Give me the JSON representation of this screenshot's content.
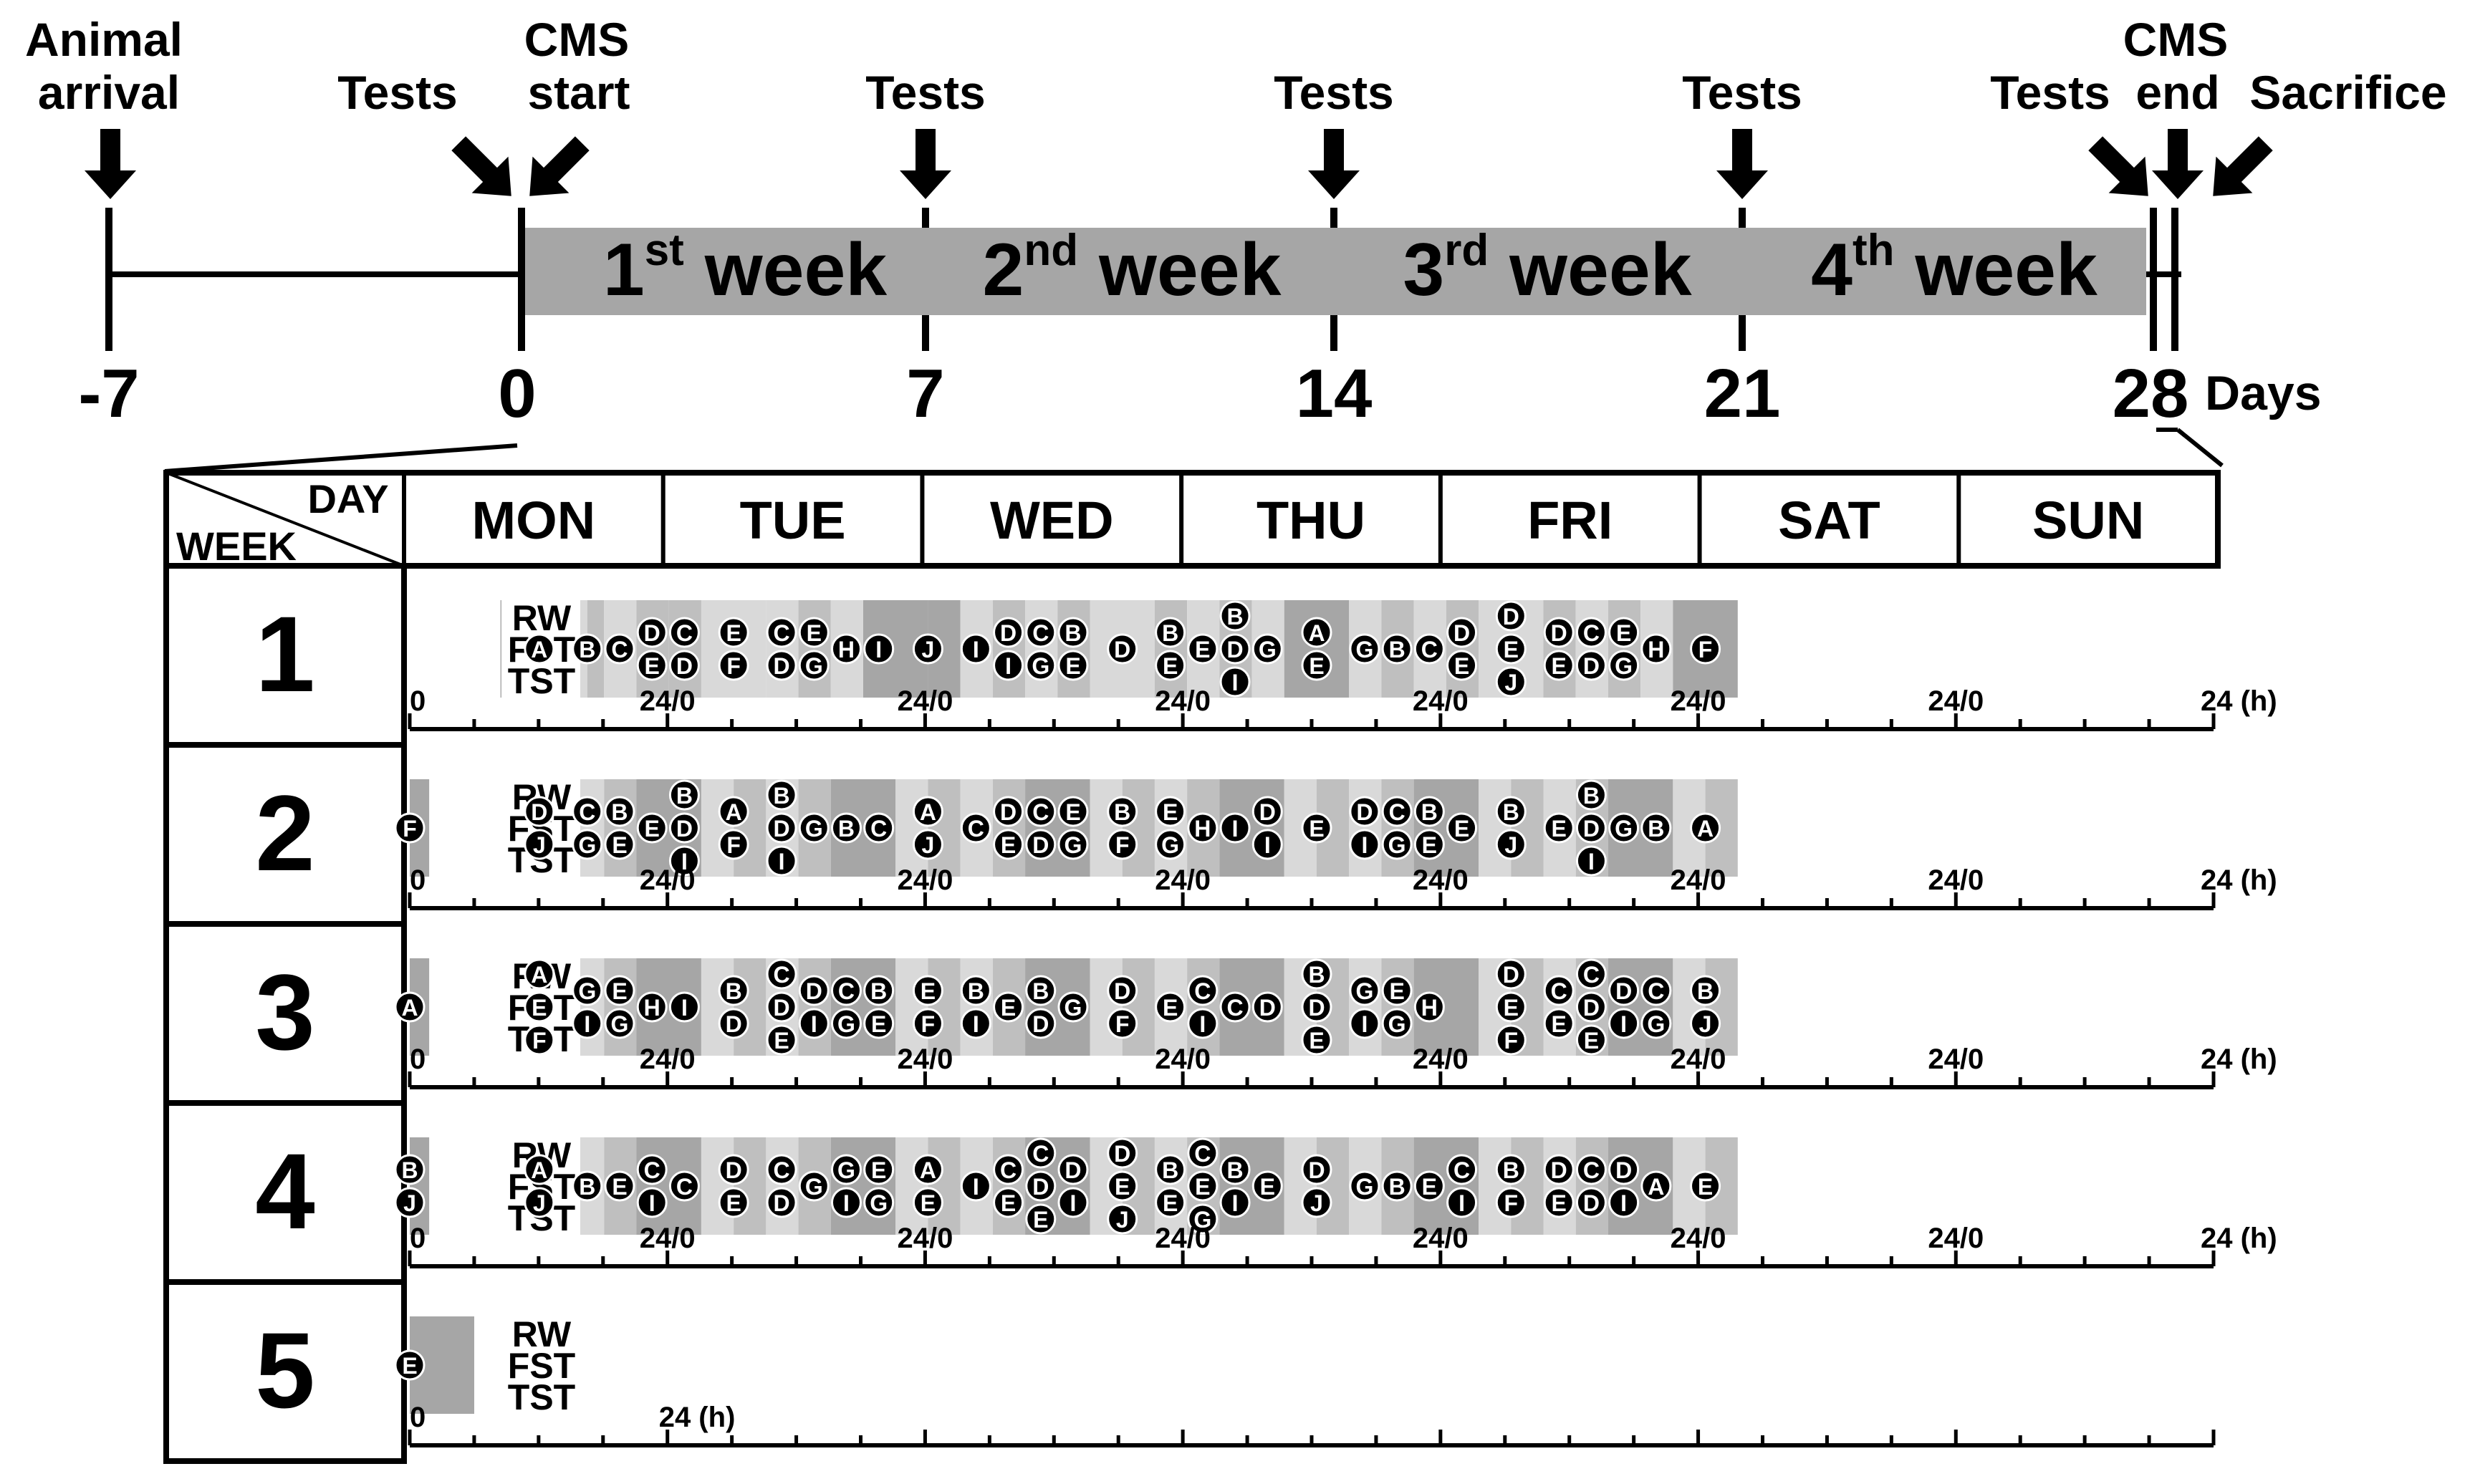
{
  "timeline": {
    "left_labels": {
      "animal_arrival": [
        "Animal",
        "arrival"
      ],
      "tests": "Tests",
      "cms_start": [
        "CMS",
        "start"
      ]
    },
    "tests_label": "Tests",
    "right_labels": {
      "tests": "Tests",
      "cms_end": [
        "CMS",
        "end"
      ],
      "sacrifice": "Sacrifice"
    },
    "weeks": [
      {
        "num": "1",
        "sup": "st",
        "word": " week"
      },
      {
        "num": "2",
        "sup": "nd",
        "word": " week"
      },
      {
        "num": "3",
        "sup": "rd",
        "word": " week"
      },
      {
        "num": "4",
        "sup": "th",
        "word": " week"
      }
    ],
    "ticks": [
      "-7",
      "0",
      "7",
      "14",
      "21",
      "28"
    ],
    "unit": "Days"
  },
  "schedule": {
    "corner_day": "DAY",
    "corner_week": "WEEK",
    "days": [
      "MON",
      "TUE",
      "WED",
      "THU",
      "FRI",
      "SAT",
      "SUN"
    ],
    "tests": [
      "RW",
      "FST",
      "TST"
    ],
    "axis_start": "0",
    "axis_mid": "24/0",
    "axis_end": "24 (h)",
    "week5_end": "24 (h)",
    "weeks": [
      {
        "label": "1",
        "blocks": [
          [
            0,
            0
          ],
          [
            0.7,
            "d"
          ],
          [
            1.2,
            "m"
          ],
          [
            1.5,
            "d"
          ],
          [
            1.75,
            "m"
          ],
          [
            2.0,
            "l"
          ],
          [
            2.25,
            "m"
          ],
          [
            2.5,
            "d"
          ],
          [
            2.75,
            "l"
          ],
          [
            3.0,
            "d"
          ],
          [
            3.5,
            "l"
          ],
          [
            3.75,
            "m"
          ],
          [
            4.0,
            "d"
          ],
          [
            4.25,
            "l"
          ],
          [
            4.75,
            "m"
          ],
          [
            5.0,
            "d"
          ],
          [
            5.5,
            "l"
          ],
          [
            5.75,
            "m"
          ],
          [
            6.0,
            "l"
          ],
          [
            6.25,
            "m"
          ],
          [
            6.5,
            "l"
          ],
          [
            6.75,
            "m"
          ],
          [
            7.0,
            "l"
          ],
          [
            7.25,
            "m"
          ],
          [
            7.5,
            "l"
          ],
          [
            7.75,
            "m"
          ],
          [
            8.0,
            "end"
          ]
        ],
        "events": [
          {
            "t": 1.0,
            "c": [
              "A"
            ]
          },
          {
            "t": 1.37,
            "c": [
              "B"
            ]
          },
          {
            "t": 1.62,
            "c": [
              "C"
            ]
          },
          {
            "t": 1.87,
            "c": [
              "D",
              "E"
            ]
          },
          {
            "t": 2.12,
            "c": [
              "C",
              "D"
            ]
          },
          {
            "t": 2.5,
            "c": [
              "E",
              "F"
            ]
          },
          {
            "t": 2.87,
            "c": [
              "C",
              "D"
            ]
          },
          {
            "t": 3.12,
            "c": [
              "E",
              "G"
            ]
          },
          {
            "t": 3.37,
            "c": [
              "H"
            ]
          },
          {
            "t": 3.62,
            "c": [
              "I"
            ]
          },
          {
            "t": 4.0,
            "c": [
              "J"
            ]
          },
          {
            "t": 4.37,
            "c": [
              "I"
            ]
          },
          {
            "t": 4.62,
            "c": [
              "D",
              "I"
            ]
          },
          {
            "t": 4.87,
            "c": [
              "C",
              "G"
            ]
          },
          {
            "t": 5.12,
            "c": [
              "B",
              "E"
            ]
          },
          {
            "t": 5.5,
            "c": [
              "D"
            ]
          },
          {
            "t": 5.87,
            "c": [
              "B",
              "E"
            ]
          },
          {
            "t": 6.12,
            "c": [
              "E"
            ]
          },
          {
            "t": 6.37,
            "c": [
              "B",
              "D",
              "I"
            ]
          },
          {
            "t": 6.62,
            "c": [
              "G"
            ]
          },
          {
            "t": 7.0,
            "c": [
              "A",
              "E"
            ]
          },
          {
            "t": 7.37,
            "c": [
              "G"
            ]
          },
          {
            "t": 7.62,
            "c": [
              "B"
            ]
          },
          {
            "t": 7.87,
            "c": [
              "C"
            ]
          },
          {
            "t": 8.12,
            "c": [
              "D",
              "E"
            ]
          },
          {
            "t": 8.5,
            "c": [
              "D",
              "E",
              "J"
            ]
          },
          {
            "t": 8.87,
            "c": [
              "D",
              "E"
            ]
          },
          {
            "t": 9.12,
            "c": [
              "C",
              "D"
            ]
          },
          {
            "t": 9.37,
            "c": [
              "E",
              "G"
            ]
          },
          {
            "t": 9.62,
            "c": [
              "H"
            ]
          },
          {
            "t": 10.0,
            "c": [
              "F"
            ]
          }
        ]
      },
      {
        "label": "2",
        "blocks": [],
        "events": [
          {
            "t": 0.0,
            "c": [
              "F"
            ]
          },
          {
            "t": 1.0,
            "c": [
              "D",
              "J"
            ]
          },
          {
            "t": 1.37,
            "c": [
              "C",
              "G"
            ]
          },
          {
            "t": 1.62,
            "c": [
              "B",
              "E"
            ]
          },
          {
            "t": 1.87,
            "c": [
              "E"
            ]
          },
          {
            "t": 2.12,
            "c": [
              "B",
              "D",
              "I"
            ]
          },
          {
            "t": 2.5,
            "c": [
              "A",
              "F"
            ]
          },
          {
            "t": 2.87,
            "c": [
              "B",
              "D",
              "I"
            ]
          },
          {
            "t": 3.12,
            "c": [
              "G"
            ]
          },
          {
            "t": 3.37,
            "c": [
              "B"
            ]
          },
          {
            "t": 3.62,
            "c": [
              "C"
            ]
          },
          {
            "t": 4.0,
            "c": [
              "A",
              "J"
            ]
          },
          {
            "t": 4.37,
            "c": [
              "C"
            ]
          },
          {
            "t": 4.62,
            "c": [
              "D",
              "E"
            ]
          },
          {
            "t": 4.87,
            "c": [
              "C",
              "D"
            ]
          },
          {
            "t": 5.12,
            "c": [
              "E",
              "G"
            ]
          },
          {
            "t": 5.5,
            "c": [
              "B",
              "F"
            ]
          },
          {
            "t": 5.87,
            "c": [
              "E",
              "G"
            ]
          },
          {
            "t": 6.12,
            "c": [
              "H"
            ]
          },
          {
            "t": 6.37,
            "c": [
              "I"
            ]
          },
          {
            "t": 6.62,
            "c": [
              "D",
              "I"
            ]
          },
          {
            "t": 7.0,
            "c": [
              "E"
            ]
          },
          {
            "t": 7.37,
            "c": [
              "D",
              "I"
            ]
          },
          {
            "t": 7.62,
            "c": [
              "C",
              "G"
            ]
          },
          {
            "t": 7.87,
            "c": [
              "B",
              "E"
            ]
          },
          {
            "t": 8.12,
            "c": [
              "E"
            ]
          },
          {
            "t": 8.5,
            "c": [
              "B",
              "J"
            ]
          },
          {
            "t": 8.87,
            "c": [
              "E"
            ]
          },
          {
            "t": 9.12,
            "c": [
              "B",
              "D",
              "I"
            ]
          },
          {
            "t": 9.37,
            "c": [
              "G"
            ]
          },
          {
            "t": 9.62,
            "c": [
              "B"
            ]
          },
          {
            "t": 10.0,
            "c": [
              "A"
            ]
          }
        ]
      },
      {
        "label": "3",
        "blocks": [],
        "events": [
          {
            "t": 0.0,
            "c": [
              "A"
            ]
          },
          {
            "t": 1.0,
            "c": [
              "A",
              "E",
              "F"
            ]
          },
          {
            "t": 1.37,
            "c": [
              "G",
              "I"
            ]
          },
          {
            "t": 1.62,
            "c": [
              "E",
              "G"
            ]
          },
          {
            "t": 1.87,
            "c": [
              "H"
            ]
          },
          {
            "t": 2.12,
            "c": [
              "I"
            ]
          },
          {
            "t": 2.5,
            "c": [
              "B",
              "D"
            ]
          },
          {
            "t": 2.87,
            "c": [
              "C",
              "D",
              "E"
            ]
          },
          {
            "t": 3.12,
            "c": [
              "D",
              "I"
            ]
          },
          {
            "t": 3.37,
            "c": [
              "C",
              "G"
            ]
          },
          {
            "t": 3.62,
            "c": [
              "B",
              "E"
            ]
          },
          {
            "t": 4.0,
            "c": [
              "E",
              "F"
            ]
          },
          {
            "t": 4.37,
            "c": [
              "B",
              "I"
            ]
          },
          {
            "t": 4.62,
            "c": [
              "E"
            ]
          },
          {
            "t": 4.87,
            "c": [
              "B",
              "D"
            ]
          },
          {
            "t": 5.12,
            "c": [
              "G"
            ]
          },
          {
            "t": 5.5,
            "c": [
              "D",
              "F"
            ]
          },
          {
            "t": 5.87,
            "c": [
              "E"
            ]
          },
          {
            "t": 6.12,
            "c": [
              "C",
              "I"
            ]
          },
          {
            "t": 6.37,
            "c": [
              "C"
            ]
          },
          {
            "t": 6.62,
            "c": [
              "D"
            ]
          },
          {
            "t": 7.0,
            "c": [
              "B",
              "D",
              "E"
            ]
          },
          {
            "t": 7.37,
            "c": [
              "G",
              "I"
            ]
          },
          {
            "t": 7.62,
            "c": [
              "E",
              "G"
            ]
          },
          {
            "t": 7.87,
            "c": [
              "H"
            ]
          },
          {
            "t": 8.5,
            "c": [
              "D",
              "E",
              "F"
            ]
          },
          {
            "t": 8.87,
            "c": [
              "C",
              "E"
            ]
          },
          {
            "t": 9.12,
            "c": [
              "C",
              "D",
              "E"
            ]
          },
          {
            "t": 9.37,
            "c": [
              "D",
              "I"
            ]
          },
          {
            "t": 9.62,
            "c": [
              "C",
              "G"
            ]
          },
          {
            "t": 10.0,
            "c": [
              "B",
              "J"
            ]
          }
        ]
      },
      {
        "label": "4",
        "blocks": [],
        "events": [
          {
            "t": 0.0,
            "c": [
              "B",
              "J"
            ]
          },
          {
            "t": 1.0,
            "c": [
              "A",
              "J"
            ]
          },
          {
            "t": 1.37,
            "c": [
              "B"
            ]
          },
          {
            "t": 1.62,
            "c": [
              "E"
            ]
          },
          {
            "t": 1.87,
            "c": [
              "C",
              "I"
            ]
          },
          {
            "t": 2.12,
            "c": [
              "C"
            ]
          },
          {
            "t": 2.5,
            "c": [
              "D",
              "E"
            ]
          },
          {
            "t": 2.87,
            "c": [
              "C",
              "D"
            ]
          },
          {
            "t": 3.12,
            "c": [
              "G"
            ]
          },
          {
            "t": 3.37,
            "c": [
              "G",
              "I"
            ]
          },
          {
            "t": 3.62,
            "c": [
              "E",
              "G"
            ]
          },
          {
            "t": 4.0,
            "c": [
              "A",
              "E"
            ]
          },
          {
            "t": 4.37,
            "c": [
              "I"
            ]
          },
          {
            "t": 4.62,
            "c": [
              "C",
              "E"
            ]
          },
          {
            "t": 4.87,
            "c": [
              "C",
              "D",
              "E"
            ]
          },
          {
            "t": 5.12,
            "c": [
              "D",
              "I"
            ]
          },
          {
            "t": 5.5,
            "c": [
              "D",
              "E",
              "J"
            ]
          },
          {
            "t": 5.87,
            "c": [
              "B",
              "E"
            ]
          },
          {
            "t": 6.12,
            "c": [
              "C",
              "E",
              "G"
            ]
          },
          {
            "t": 6.37,
            "c": [
              "B",
              "I"
            ]
          },
          {
            "t": 6.62,
            "c": [
              "E"
            ]
          },
          {
            "t": 7.0,
            "c": [
              "D",
              "J"
            ]
          },
          {
            "t": 7.37,
            "c": [
              "G"
            ]
          },
          {
            "t": 7.62,
            "c": [
              "B"
            ]
          },
          {
            "t": 7.87,
            "c": [
              "E"
            ]
          },
          {
            "t": 8.12,
            "c": [
              "C",
              "I"
            ]
          },
          {
            "t": 8.5,
            "c": [
              "B",
              "F"
            ]
          },
          {
            "t": 8.87,
            "c": [
              "D",
              "E"
            ]
          },
          {
            "t": 9.12,
            "c": [
              "C",
              "D"
            ]
          },
          {
            "t": 9.37,
            "c": [
              "D",
              "I"
            ]
          },
          {
            "t": 9.62,
            "c": [
              "A"
            ]
          },
          {
            "t": 10.0,
            "c": [
              "E"
            ]
          }
        ]
      },
      {
        "label": "5",
        "blocks": [],
        "events": [
          {
            "t": 0.0,
            "c": [
              "E"
            ]
          }
        ]
      }
    ]
  },
  "colors": {
    "dark_band": "#a6a6a6",
    "light_band": "#d9d9d9",
    "mid_band": "#bfbfbf",
    "ink": "#000000"
  }
}
